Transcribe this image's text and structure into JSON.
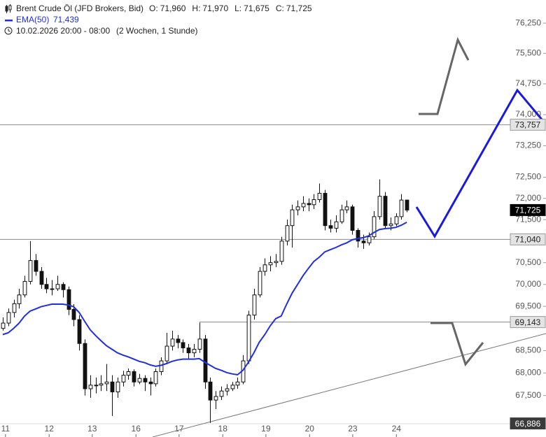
{
  "chart_data": {
    "type": "candlestick",
    "header": {
      "ohlc": [
        {
          "key": "O:",
          "label": "71,960"
        },
        {
          "key": "H:",
          "label": "71,970"
        },
        {
          "key": "L:",
          "label": "71,675"
        },
        {
          "key": "C:",
          "label": "71,725"
        }
      ],
      "date_range": "10.02.2026 20:00 - 08:00",
      "period": "(2 Wochen, 1 Stunde)"
    },
    "log_scale": true,
    "grid": false,
    "xlim": [
      -0.5,
      99.5
    ],
    "xticks": [
      {
        "value": 0.5,
        "label": "11"
      },
      {
        "value": 8.5,
        "label": "12"
      },
      {
        "value": 16.4,
        "label": "13"
      },
      {
        "value": 24.4,
        "label": "16"
      },
      {
        "value": 32.3,
        "label": "17"
      },
      {
        "value": 40.3,
        "label": "18"
      },
      {
        "value": 48.2,
        "label": "19"
      },
      {
        "value": 56.2,
        "label": "20"
      },
      {
        "value": 64.1,
        "label": "23"
      },
      {
        "value": 72.1,
        "label": "24"
      }
    ],
    "ylim": [
      66.88,
      76.83
    ],
    "yticks": [
      {
        "value": 76.25,
        "label": "76,250"
      },
      {
        "value": 75.5,
        "label": "75,500"
      },
      {
        "value": 74.75,
        "label": "74,750"
      },
      {
        "value": 74.0,
        "label": "74,000"
      },
      {
        "value": 73.25,
        "label": "73,250"
      },
      {
        "value": 72.5,
        "label": "72,500"
      },
      {
        "value": 72.0,
        "label": "72,000"
      },
      {
        "value": 71.5,
        "label": "71,500"
      },
      {
        "value": 70.5,
        "label": "70,500"
      },
      {
        "value": 70.0,
        "label": "70,000"
      },
      {
        "value": 69.5,
        "label": "69,500"
      },
      {
        "value": 68.5,
        "label": "68,500"
      },
      {
        "value": 68.0,
        "label": "68,000"
      },
      {
        "value": 67.5,
        "label": "67,500"
      }
    ],
    "candles": {
      "name": "Brent Crude Öl (JFD Brokers, Bid)",
      "color": "#111111",
      "open": [
        69.0,
        69.12,
        69.36,
        69.56,
        69.76,
        70.07,
        70.55,
        70.3,
        70.0,
        69.9,
        69.9,
        70.0,
        69.88,
        69.43,
        69.2,
        68.66,
        67.65,
        67.73,
        67.73,
        67.76,
        67.8,
        67.58,
        67.8,
        67.95,
        68.03,
        67.8,
        67.88,
        67.8,
        67.76,
        68.03,
        68.27,
        68.6,
        68.76,
        68.68,
        68.56,
        68.45,
        68.53,
        68.76,
        67.8,
        67.4,
        67.48,
        67.6,
        67.65,
        67.73,
        67.8,
        68.27,
        69.3,
        69.76,
        70.3,
        70.45,
        70.5,
        70.53,
        71.0,
        71.36,
        71.73,
        71.8,
        71.88,
        71.85,
        71.97,
        72.12,
        71.36,
        71.3,
        71.45,
        71.73,
        71.8,
        71.25,
        71.0,
        70.96,
        71.1,
        71.57,
        72.05,
        71.36,
        71.4,
        71.57,
        71.96
      ],
      "high": [
        69.25,
        69.45,
        69.65,
        69.9,
        70.2,
        71.0,
        70.7,
        70.4,
        70.15,
        70.1,
        70.2,
        70.05,
        69.95,
        69.55,
        69.3,
        68.75,
        67.95,
        67.9,
        67.95,
        68.2,
        67.95,
        67.9,
        68.05,
        68.1,
        68.08,
        67.98,
        67.95,
        67.9,
        68.1,
        68.35,
        68.9,
        68.95,
        68.85,
        68.75,
        68.65,
        68.65,
        69.13,
        68.85,
        67.9,
        67.6,
        67.7,
        67.75,
        67.8,
        67.9,
        68.4,
        69.4,
        69.9,
        70.4,
        70.6,
        70.65,
        70.7,
        71.1,
        71.5,
        71.85,
        71.95,
        72.05,
        72.0,
        72.1,
        72.35,
        72.2,
        71.5,
        71.6,
        71.85,
        71.95,
        71.85,
        71.3,
        71.15,
        71.2,
        71.7,
        72.45,
        72.15,
        71.55,
        71.65,
        72.1,
        71.97
      ],
      "low": [
        68.95,
        69.05,
        69.25,
        69.45,
        69.7,
        70.0,
        70.2,
        69.9,
        69.8,
        69.75,
        69.85,
        69.7,
        69.3,
        69.05,
        68.5,
        67.5,
        67.45,
        67.55,
        67.6,
        67.6,
        67.05,
        67.45,
        67.7,
        67.85,
        67.7,
        67.75,
        67.6,
        67.5,
        67.7,
        67.95,
        68.2,
        68.5,
        68.55,
        68.45,
        68.3,
        68.35,
        68.45,
        67.65,
        66.9,
        67.2,
        67.4,
        67.5,
        67.6,
        67.65,
        67.75,
        68.2,
        69.2,
        69.7,
        70.2,
        70.3,
        70.4,
        70.45,
        70.9,
        70.85,
        71.6,
        71.7,
        71.7,
        71.75,
        71.9,
        71.25,
        71.2,
        71.2,
        71.4,
        71.65,
        71.15,
        70.85,
        70.82,
        70.9,
        71.05,
        71.5,
        71.3,
        71.25,
        71.35,
        71.5,
        71.675
      ],
      "close": [
        69.12,
        69.36,
        69.56,
        69.76,
        70.07,
        70.55,
        70.3,
        70.0,
        69.9,
        69.9,
        70.0,
        69.88,
        69.43,
        69.2,
        68.66,
        67.65,
        67.73,
        67.73,
        67.76,
        67.8,
        67.58,
        67.8,
        67.95,
        68.03,
        67.8,
        67.88,
        67.8,
        67.76,
        68.03,
        68.27,
        68.6,
        68.76,
        68.68,
        68.56,
        68.45,
        68.53,
        68.76,
        67.8,
        67.4,
        67.48,
        67.6,
        67.65,
        67.73,
        67.8,
        68.27,
        69.3,
        69.76,
        70.3,
        70.45,
        70.5,
        70.53,
        71.0,
        71.36,
        71.73,
        71.8,
        71.88,
        71.85,
        71.97,
        72.12,
        71.36,
        71.3,
        71.45,
        71.73,
        71.8,
        71.25,
        71.0,
        70.96,
        71.1,
        71.57,
        72.05,
        71.36,
        71.4,
        71.57,
        71.96,
        71.725
      ]
    },
    "ema": {
      "name": "EMA(50)",
      "value_label": "71,439",
      "color": "#1f2fe0",
      "values": [
        68.86,
        68.9,
        69.0,
        69.12,
        69.28,
        69.39,
        69.44,
        69.49,
        69.52,
        69.55,
        69.55,
        69.55,
        69.53,
        69.49,
        69.36,
        69.16,
        68.97,
        68.84,
        68.72,
        68.61,
        68.53,
        68.45,
        68.4,
        68.36,
        68.31,
        68.26,
        68.23,
        68.18,
        68.15,
        68.17,
        68.21,
        68.26,
        68.29,
        68.31,
        68.31,
        68.31,
        68.32,
        68.24,
        68.17,
        68.1,
        68.06,
        68.01,
        67.98,
        67.96,
        68.06,
        68.24,
        68.45,
        68.69,
        68.86,
        69.06,
        69.22,
        69.28,
        69.55,
        69.8,
        70.0,
        70.2,
        70.37,
        70.53,
        70.63,
        70.75,
        70.8,
        70.85,
        70.91,
        70.96,
        71.03,
        71.06,
        71.08,
        71.12,
        71.2,
        71.27,
        71.29,
        71.3,
        71.32,
        71.37,
        71.439
      ]
    },
    "levels": [
      {
        "value": 73.757,
        "label": "73,757",
        "style": "light",
        "line": true,
        "start": -0.5
      },
      {
        "value": 71.04,
        "label": "71,040",
        "style": "light",
        "line": true,
        "start": -0.5
      },
      {
        "value": 69.143,
        "label": "69,143",
        "style": "light",
        "line": true,
        "start": 36
      },
      {
        "value": 71.725,
        "label": "71,725",
        "style": "current",
        "line": false,
        "start": -0.5
      },
      {
        "value": 66.886,
        "label": "66,886",
        "style": "dark",
        "line": false,
        "start": -0.5
      }
    ]
  }
}
